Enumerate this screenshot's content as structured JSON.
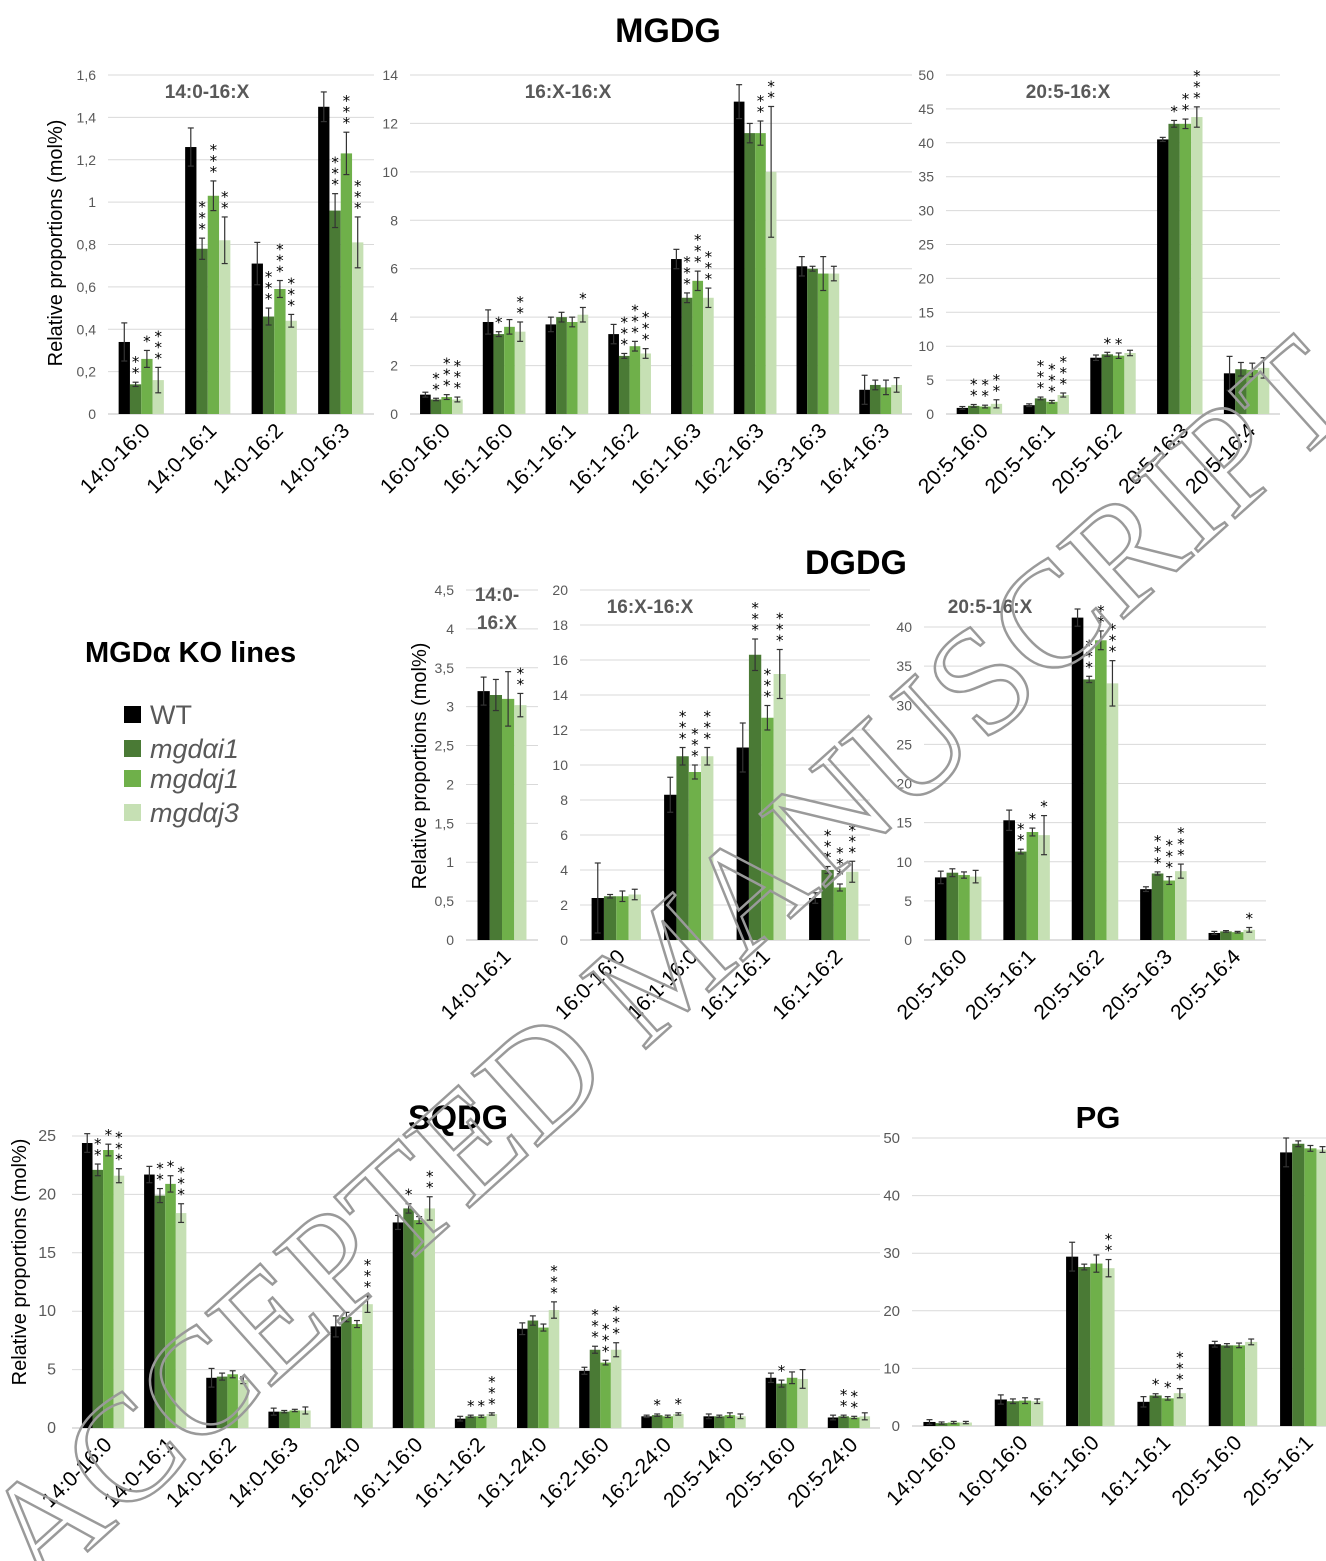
{
  "colors": [
    "#000000",
    "#4a7a35",
    "#6fb04a",
    "#c6e0b4"
  ],
  "legend": {
    "title": "MGDα KO lines",
    "entries": [
      "WT",
      "mgdαi1",
      "mgdαj1",
      "mgdαj3"
    ]
  },
  "titles": {
    "mgdg": "MGDG",
    "dgdg": "DGDG",
    "sqdg": "SQDG",
    "pg": "PG"
  },
  "ylabels": {
    "mgdg": "Relative proportions (mol%)",
    "dgdg": "Relative proportions (mol%)",
    "sqdg": "Relative proportions (mol%)"
  },
  "watermark": "ACCEPTED MANUSCRIPT",
  "chart_data": [
    {
      "id": "mgdg1",
      "type": "bar",
      "title": "14:0-16:X",
      "ylim": [
        0,
        1.6
      ],
      "yticks": [
        "0",
        "0,2",
        "0,4",
        "0,6",
        "0,8",
        "1",
        "1,2",
        "1,4",
        "1,6"
      ],
      "categories": [
        "14:0-16:0",
        "14:0-16:1",
        "14:0-16:2",
        "14:0-16:3"
      ],
      "values": [
        [
          0.34,
          0.14,
          0.26,
          0.16
        ],
        [
          1.26,
          0.78,
          1.03,
          0.82
        ],
        [
          0.71,
          0.46,
          0.59,
          0.44
        ],
        [
          1.45,
          0.96,
          1.23,
          0.81
        ]
      ],
      "errors": [
        [
          0.09,
          0.01,
          0.04,
          0.06
        ],
        [
          0.09,
          0.05,
          0.07,
          0.11
        ],
        [
          0.1,
          0.04,
          0.04,
          0.03
        ],
        [
          0.07,
          0.08,
          0.1,
          0.12
        ]
      ],
      "stars": [
        [
          "",
          "2",
          "1",
          "3"
        ],
        [
          "",
          "3",
          "3",
          "2"
        ],
        [
          "",
          "3",
          "3",
          "3"
        ],
        [
          "",
          "3",
          "3",
          "3"
        ]
      ]
    },
    {
      "id": "mgdg2",
      "type": "bar",
      "title": "16:X-16:X",
      "ylim": [
        0,
        14
      ],
      "yticks": [
        "0",
        "2",
        "4",
        "6",
        "8",
        "10",
        "12",
        "14"
      ],
      "categories": [
        "16:0-16:0",
        "16:1-16:0",
        "16:1-16:1",
        "16:1-16:2",
        "16:1-16:3",
        "16:2-16:3",
        "16:3-16:3",
        "16:4-16:3"
      ],
      "values": [
        [
          0.8,
          0.6,
          0.7,
          0.6
        ],
        [
          3.8,
          3.3,
          3.6,
          3.4
        ],
        [
          3.7,
          4.0,
          3.8,
          4.1
        ],
        [
          3.3,
          2.4,
          2.8,
          2.5
        ],
        [
          6.4,
          4.8,
          5.5,
          4.8
        ],
        [
          12.9,
          11.6,
          11.6,
          10.0
        ],
        [
          6.1,
          6.0,
          5.8,
          5.8
        ],
        [
          1.0,
          1.2,
          1.1,
          1.2
        ]
      ],
      "errors": [
        [
          0.1,
          0.05,
          0.1,
          0.1
        ],
        [
          0.5,
          0.1,
          0.3,
          0.4
        ],
        [
          0.3,
          0.2,
          0.2,
          0.3
        ],
        [
          0.4,
          0.1,
          0.2,
          0.2
        ],
        [
          0.4,
          0.2,
          0.4,
          0.4
        ],
        [
          0.7,
          0.4,
          0.5,
          2.7
        ],
        [
          0.4,
          0.1,
          0.7,
          0.3
        ],
        [
          0.6,
          0.2,
          0.3,
          0.3
        ]
      ],
      "stars": [
        [
          "",
          "2",
          "3",
          "3"
        ],
        [
          "",
          "1",
          "",
          "2"
        ],
        [
          "",
          "",
          "",
          "1"
        ],
        [
          "",
          "3",
          "3",
          "3"
        ],
        [
          "",
          "3",
          "3",
          "3"
        ],
        [
          "",
          "",
          "2",
          "2"
        ],
        [
          "",
          "",
          "",
          ""
        ],
        [
          "",
          "",
          "",
          ""
        ]
      ]
    },
    {
      "id": "mgdg3",
      "type": "bar",
      "title": "20:5-16:X",
      "ylim": [
        0,
        50
      ],
      "yticks": [
        "0",
        "5",
        "10",
        "15",
        "20",
        "25",
        "30",
        "35",
        "40",
        "45",
        "50"
      ],
      "categories": [
        "20:5-16:0",
        "20:5-16:1",
        "20:5-16:2",
        "20:5-16:3",
        "20:5-16:4"
      ],
      "values": [
        [
          0.9,
          1.2,
          1.1,
          1.5
        ],
        [
          1.3,
          2.3,
          1.8,
          2.8
        ],
        [
          8.3,
          8.8,
          8.6,
          9.0
        ],
        [
          40.5,
          42.8,
          42.8,
          43.8
        ],
        [
          6.0,
          6.6,
          6.5,
          6.8
        ]
      ],
      "errors": [
        [
          0.2,
          0.2,
          0.2,
          0.6
        ],
        [
          0.2,
          0.2,
          0.2,
          0.3
        ],
        [
          0.4,
          0.3,
          0.4,
          0.4
        ],
        [
          0.3,
          0.5,
          0.7,
          1.5
        ],
        [
          2.5,
          1.0,
          1.0,
          1.5
        ]
      ],
      "stars": [
        [
          "",
          "2",
          "2",
          "2"
        ],
        [
          "",
          "3",
          "3",
          "3"
        ],
        [
          "",
          "1",
          "1",
          ""
        ],
        [
          "",
          "1",
          "2",
          "3"
        ],
        [
          "",
          "",
          "",
          ""
        ]
      ]
    },
    {
      "id": "dgdg1",
      "type": "bar",
      "title": "14:0-16:X",
      "ylim": [
        0,
        4.5
      ],
      "yticks": [
        "0",
        "0,5",
        "1",
        "1,5",
        "2",
        "2,5",
        "3",
        "3,5",
        "4",
        "4,5"
      ],
      "categories": [
        "14:0-16:1"
      ],
      "values": [
        [
          3.2,
          3.15,
          3.1,
          3.02
        ]
      ],
      "errors": [
        [
          0.18,
          0.2,
          0.35,
          0.15
        ]
      ],
      "stars": [
        [
          "",
          "",
          "",
          "2"
        ]
      ]
    },
    {
      "id": "dgdg2",
      "type": "bar",
      "title": "16:X-16:X",
      "ylim": [
        0,
        20
      ],
      "yticks": [
        "0",
        "2",
        "4",
        "6",
        "8",
        "10",
        "12",
        "14",
        "16",
        "18",
        "20"
      ],
      "categories": [
        "16:0-16:0",
        "16:1-16:0",
        "16:1-16:1",
        "16:1-16:2"
      ],
      "values": [
        [
          2.4,
          2.5,
          2.5,
          2.6
        ],
        [
          8.3,
          10.5,
          9.6,
          10.5
        ],
        [
          11.0,
          16.3,
          12.7,
          15.2
        ],
        [
          2.4,
          4.0,
          3.0,
          3.9
        ]
      ],
      "errors": [
        [
          2.0,
          0.1,
          0.3,
          0.3
        ],
        [
          1.0,
          0.5,
          0.4,
          0.5
        ],
        [
          1.4,
          0.9,
          0.7,
          1.4
        ],
        [
          0.3,
          0.2,
          0.2,
          0.6
        ]
      ],
      "stars": [
        [
          "",
          "",
          "",
          ""
        ],
        [
          "",
          "3",
          "3",
          "3"
        ],
        [
          "",
          "3",
          "3",
          "3"
        ],
        [
          "",
          "3",
          "3",
          "3"
        ]
      ]
    },
    {
      "id": "dgdg3",
      "type": "bar",
      "title": "20:5-16:X",
      "ylim": [
        0,
        40
      ],
      "yticks": [
        "0",
        "5",
        "10",
        "15",
        "20",
        "25",
        "30",
        "35",
        "40"
      ],
      "categories": [
        "20:5-16:0",
        "20:5-16:1",
        "20:5-16:2",
        "20:5-16:3",
        "20:5-16:4"
      ],
      "values": [
        [
          8.0,
          8.6,
          8.3,
          8.1
        ],
        [
          15.3,
          11.3,
          13.8,
          13.4
        ],
        [
          41.2,
          33.3,
          38.3,
          32.8
        ],
        [
          6.5,
          8.5,
          7.6,
          8.8
        ],
        [
          0.9,
          1.1,
          1.0,
          1.3
        ]
      ],
      "errors": [
        [
          0.8,
          0.5,
          0.4,
          0.8
        ],
        [
          1.3,
          0.3,
          0.5,
          2.5
        ],
        [
          1.1,
          0.4,
          1.2,
          2.9
        ],
        [
          0.3,
          0.2,
          0.5,
          0.9
        ],
        [
          0.2,
          0.1,
          0.1,
          0.3
        ]
      ],
      "stars": [
        [
          "",
          "",
          "",
          ""
        ],
        [
          "",
          "2",
          "1",
          "1"
        ],
        [
          "",
          "3",
          "2",
          "3"
        ],
        [
          "",
          "3",
          "3",
          "3"
        ],
        [
          "",
          "",
          "",
          "1"
        ]
      ]
    },
    {
      "id": "sqdg",
      "type": "bar",
      "title": "",
      "ylim": [
        0,
        25
      ],
      "yticks": [
        "0",
        "5",
        "10",
        "15",
        "20",
        "25"
      ],
      "categories": [
        "14:0-16:0",
        "14:0-16:1",
        "14:0-16:2",
        "14:0-16:3",
        "16:0-24:0",
        "16:1-16:0",
        "16:1-16:2",
        "16:1-24:0",
        "16:2-16:0",
        "16:2-24:0",
        "20:5-14:0",
        "20:5-16:0",
        "20:5-24:0"
      ],
      "values": [
        [
          24.4,
          22.1,
          23.8,
          21.6
        ],
        [
          21.7,
          19.9,
          20.9,
          18.4
        ],
        [
          4.3,
          4.4,
          4.6,
          4.1
        ],
        [
          1.4,
          1.4,
          1.5,
          1.5
        ],
        [
          8.7,
          9.5,
          8.9,
          10.6
        ],
        [
          17.6,
          18.8,
          17.8,
          18.8
        ],
        [
          0.8,
          1.0,
          1.0,
          1.2
        ],
        [
          8.5,
          9.2,
          8.6,
          10.1
        ],
        [
          4.9,
          6.7,
          5.6,
          6.7
        ],
        [
          1.0,
          1.1,
          1.0,
          1.2
        ],
        [
          1.0,
          1.0,
          1.1,
          1.0
        ],
        [
          4.3,
          3.8,
          4.3,
          4.2
        ],
        [
          0.9,
          1.0,
          0.9,
          1.0
        ]
      ],
      "errors": [
        [
          0.8,
          0.5,
          0.5,
          0.6
        ],
        [
          0.7,
          0.6,
          0.7,
          0.8
        ],
        [
          0.8,
          0.3,
          0.3,
          0.3
        ],
        [
          0.3,
          0.1,
          0.1,
          0.3
        ],
        [
          0.9,
          0.4,
          0.3,
          0.7
        ],
        [
          0.6,
          0.4,
          0.3,
          1.0
        ],
        [
          0.2,
          0.1,
          0.1,
          0.1
        ],
        [
          0.5,
          0.4,
          0.3,
          0.7
        ],
        [
          0.3,
          0.3,
          0.2,
          0.6
        ],
        [
          0.1,
          0.1,
          0.1,
          0.1
        ],
        [
          0.2,
          0.1,
          0.2,
          0.2
        ],
        [
          0.4,
          0.3,
          0.5,
          0.8
        ],
        [
          0.2,
          0.1,
          0.1,
          0.3
        ]
      ],
      "stars": [
        [
          "",
          "2",
          "1",
          "3"
        ],
        [
          "",
          "2",
          "1",
          "3"
        ],
        [
          "",
          "",
          "",
          ""
        ],
        [
          "",
          "",
          "",
          ""
        ],
        [
          "",
          "",
          "",
          "3"
        ],
        [
          "",
          "1",
          "",
          "2"
        ],
        [
          "",
          "1",
          "1",
          "3"
        ],
        [
          "",
          "",
          "",
          "3"
        ],
        [
          "",
          "3",
          "3",
          "3"
        ],
        [
          "",
          "1",
          "",
          "1"
        ],
        [
          "",
          "",
          "",
          ""
        ],
        [
          "",
          "1",
          "",
          ""
        ],
        [
          "",
          "2",
          "2",
          ""
        ]
      ]
    },
    {
      "id": "pg",
      "type": "bar",
      "title": "",
      "ylim": [
        0,
        50
      ],
      "yticks": [
        "0",
        "10",
        "20",
        "30",
        "40",
        "50"
      ],
      "categories": [
        "14:0-16:0",
        "16:0-16:0",
        "16:1-16:0",
        "16:1-16:1",
        "20:5-16:0",
        "20:5-16:1"
      ],
      "values": [
        [
          0.7,
          0.5,
          0.6,
          0.6
        ],
        [
          4.6,
          4.3,
          4.4,
          4.3
        ],
        [
          29.4,
          27.6,
          28.2,
          27.4
        ],
        [
          4.2,
          5.3,
          4.8,
          5.7
        ],
        [
          14.2,
          14.0,
          14.0,
          14.6
        ],
        [
          47.5,
          49.0,
          48.2,
          48.0
        ]
      ],
      "errors": [
        [
          0.4,
          0.2,
          0.2,
          0.2
        ],
        [
          0.8,
          0.4,
          0.5,
          0.4
        ],
        [
          2.5,
          0.5,
          1.5,
          1.5
        ],
        [
          0.9,
          0.3,
          0.3,
          0.8
        ],
        [
          0.5,
          0.3,
          0.4,
          0.5
        ],
        [
          2.5,
          0.5,
          0.5,
          0.5
        ]
      ],
      "stars": [
        [
          "",
          "",
          "",
          ""
        ],
        [
          "",
          "",
          "",
          ""
        ],
        [
          "",
          "",
          "",
          "2"
        ],
        [
          "",
          "1",
          "1",
          "3"
        ],
        [
          "",
          "",
          "",
          ""
        ],
        [
          "",
          "",
          "",
          ""
        ]
      ]
    }
  ]
}
